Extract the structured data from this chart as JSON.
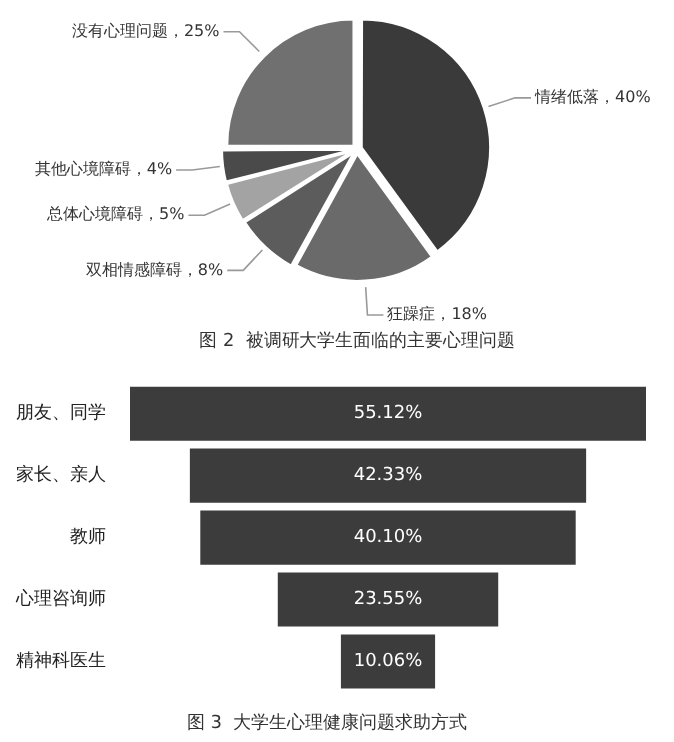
{
  "chart_data": [
    {
      "type": "pie",
      "title": "图 2  被调研大学生面临的主要心理问题",
      "categories": [
        "情绪低落",
        "狂躁症",
        "双相情感障碍",
        "总体心境障碍",
        "其他心境障碍",
        "没有心理问题"
      ],
      "values": [
        40,
        18,
        8,
        5,
        4,
        25
      ],
      "colors": [
        "#3a3a3a",
        "#6a6a6a",
        "#5c5c5c",
        "#a3a3a3",
        "#4a4a4a",
        "#707070"
      ],
      "value_labels": [
        "，40%",
        "，18%",
        "，8%",
        "，5%",
        "，4%",
        "，25%"
      ],
      "legend": false
    },
    {
      "type": "other",
      "title": "图 3  大学生心理健康问题求助方式",
      "categories": [
        "朋友、同学",
        "家长、亲人",
        "教师",
        "心理咨询师",
        "精神科医生"
      ],
      "values": [
        55.12,
        42.33,
        40.1,
        23.55,
        10.06
      ],
      "value_labels": [
        "55.12%",
        "42.33%",
        "40.10%",
        "23.55%",
        "10.06%"
      ],
      "color": "#3c3c3c",
      "legend": false
    }
  ]
}
